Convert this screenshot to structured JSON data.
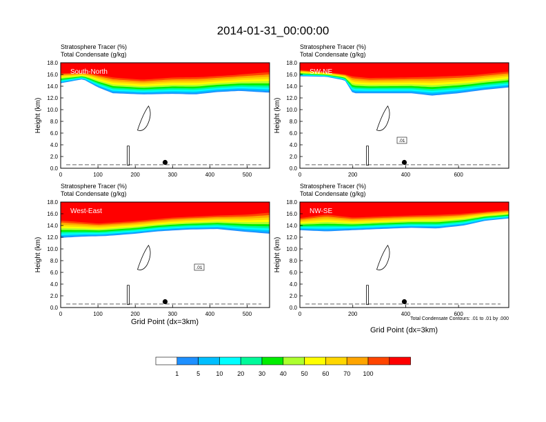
{
  "title": "2014-01-31_00:00:00",
  "chart_data": {
    "type": "heatmap",
    "ylabel": "Height (km)",
    "xlabel": "Grid Point (dx=3km)",
    "yticks": [
      "0.0",
      "2.0",
      "4.0",
      "6.0",
      "8.0",
      "10.0",
      "12.0",
      "14.0",
      "16.0",
      "18.0"
    ],
    "ylim": [
      0,
      18
    ],
    "line1": "Stratosphere Tracer   (%)",
    "line2": "Total Condensate   (g/kg)",
    "contour_note": "Total Condensate Contours: .01 to .01 by .000",
    "contour_label": ".01",
    "colorbar": {
      "colors": [
        "#ffffff",
        "#1e90ff",
        "#00bfff",
        "#00ffff",
        "#00fa9a",
        "#00ee00",
        "#adff2f",
        "#ffff00",
        "#ffd700",
        "#ffa500",
        "#ff4500",
        "#ff0000"
      ],
      "labels": [
        "1",
        "5",
        "10",
        "20",
        "30",
        "40",
        "50",
        "60",
        "70",
        "100"
      ]
    },
    "panels": [
      {
        "name": "South-North",
        "xlim": [
          0,
          560
        ],
        "xticks": [
          "0",
          "100",
          "200",
          "300",
          "400",
          "500"
        ],
        "xtick_values": [
          0,
          100,
          200,
          300,
          400,
          500
        ],
        "marker_x": 280,
        "band_low": [
          [
            0,
            14.5
          ],
          [
            60,
            15.2
          ],
          [
            100,
            13.8
          ],
          [
            140,
            12.8
          ],
          [
            220,
            12.6
          ],
          [
            300,
            12.7
          ],
          [
            360,
            12.6
          ],
          [
            420,
            13.0
          ],
          [
            480,
            13.2
          ],
          [
            560,
            12.9
          ]
        ],
        "band_top": [
          [
            0,
            16.4
          ],
          [
            80,
            16.4
          ],
          [
            140,
            15.8
          ],
          [
            220,
            15.4
          ],
          [
            300,
            15.8
          ],
          [
            380,
            15.9
          ],
          [
            460,
            16.2
          ],
          [
            560,
            16.8
          ]
        ]
      },
      {
        "name": "SW-NE",
        "xlim": [
          0,
          790
        ],
        "xticks": [
          "0",
          "200",
          "400",
          "600"
        ],
        "xtick_values": [
          0,
          200,
          400,
          600
        ],
        "marker_x": 395,
        "band_low": [
          [
            0,
            15.7
          ],
          [
            100,
            15.6
          ],
          [
            170,
            15.0
          ],
          [
            200,
            12.8
          ],
          [
            300,
            12.8
          ],
          [
            420,
            12.8
          ],
          [
            500,
            12.4
          ],
          [
            600,
            12.8
          ],
          [
            700,
            13.4
          ],
          [
            790,
            13.8
          ]
        ],
        "band_top": [
          [
            0,
            16.9
          ],
          [
            140,
            16.3
          ],
          [
            260,
            15.7
          ],
          [
            400,
            15.8
          ],
          [
            520,
            16.0
          ],
          [
            650,
            16.2
          ],
          [
            790,
            16.8
          ]
        ]
      },
      {
        "name": "West-East",
        "xlim": [
          0,
          560
        ],
        "xticks": [
          "0",
          "100",
          "200",
          "300",
          "400",
          "500"
        ],
        "xtick_values": [
          0,
          100,
          200,
          300,
          400,
          500
        ],
        "marker_x": 280,
        "band_low": [
          [
            0,
            11.9
          ],
          [
            60,
            12.1
          ],
          [
            120,
            12.2
          ],
          [
            200,
            12.6
          ],
          [
            260,
            13.0
          ],
          [
            340,
            13.3
          ],
          [
            420,
            13.4
          ],
          [
            500,
            12.9
          ],
          [
            560,
            12.6
          ]
        ],
        "band_top": [
          [
            0,
            15.2
          ],
          [
            100,
            14.6
          ],
          [
            200,
            15.0
          ],
          [
            300,
            15.6
          ],
          [
            400,
            15.9
          ],
          [
            500,
            16.2
          ],
          [
            560,
            16.6
          ]
        ]
      },
      {
        "name": "NW-SE",
        "xlim": [
          0,
          790
        ],
        "xticks": [
          "0",
          "200",
          "400",
          "600"
        ],
        "xtick_values": [
          0,
          200,
          400,
          600
        ],
        "marker_x": 395,
        "band_low": [
          [
            0,
            13.2
          ],
          [
            100,
            13.0
          ],
          [
            200,
            13.2
          ],
          [
            300,
            13.4
          ],
          [
            420,
            13.6
          ],
          [
            520,
            13.5
          ],
          [
            620,
            14.0
          ],
          [
            700,
            14.8
          ],
          [
            790,
            15.2
          ]
        ],
        "band_top": [
          [
            0,
            15.5
          ],
          [
            100,
            16.2
          ],
          [
            200,
            15.6
          ],
          [
            320,
            15.8
          ],
          [
            460,
            16.0
          ],
          [
            600,
            16.2
          ],
          [
            790,
            16.8
          ]
        ]
      }
    ]
  }
}
